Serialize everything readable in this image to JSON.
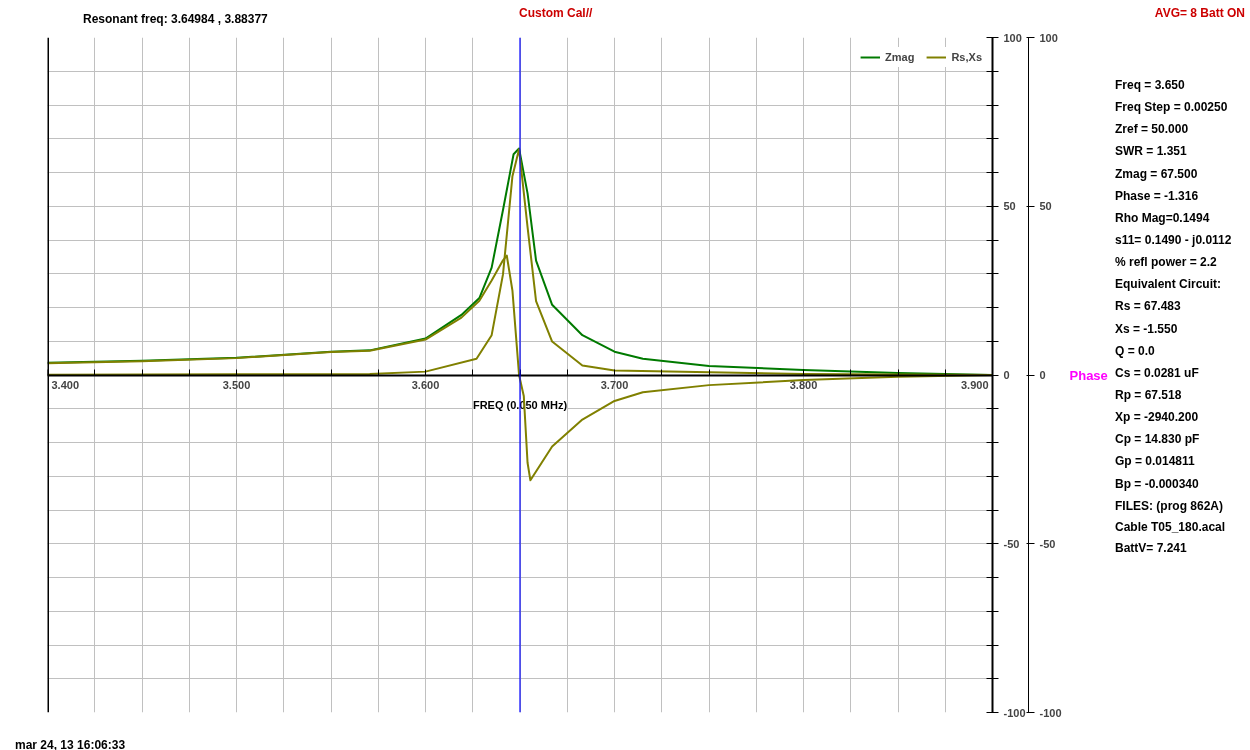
{
  "chart_data": {
    "type": "line",
    "title": "Custom Cal//",
    "subtitle": "Resonant freq:  3.64984 , 3.88377",
    "xlabel": "FREQ (0.050 MHz)",
    "y2label": "Phase",
    "legend": "top right",
    "grid": true,
    "marker": "none",
    "line_style": "solid",
    "xlim": [
      3.4,
      3.9
    ],
    "xticks": [
      {
        "value": 3.4,
        "label": "3.400"
      },
      {
        "value": 3.425,
        "label": null
      },
      {
        "value": 3.45,
        "label": null
      },
      {
        "value": 3.475,
        "label": null
      },
      {
        "value": 3.5,
        "label": "3.500"
      },
      {
        "value": 3.525,
        "label": null
      },
      {
        "value": 3.55,
        "label": null
      },
      {
        "value": 3.575,
        "label": null
      },
      {
        "value": 3.6,
        "label": "3.600"
      },
      {
        "value": 3.625,
        "label": null
      },
      {
        "value": 3.65,
        "label": null
      },
      {
        "value": 3.675,
        "label": null
      },
      {
        "value": 3.7,
        "label": "3.700"
      },
      {
        "value": 3.725,
        "label": null
      },
      {
        "value": 3.75,
        "label": null
      },
      {
        "value": 3.775,
        "label": null
      },
      {
        "value": 3.8,
        "label": "3.800"
      },
      {
        "value": 3.825,
        "label": null
      },
      {
        "value": 3.85,
        "label": null
      },
      {
        "value": 3.875,
        "label": null
      },
      {
        "value": 3.9,
        "label": "3.900"
      }
    ],
    "ylim": [
      -100,
      100
    ],
    "yticks": [
      -100,
      {
        "value": -90,
        "label": null
      },
      {
        "value": -80,
        "label": null
      },
      {
        "value": -70,
        "label": null
      },
      {
        "value": -60,
        "label": null
      },
      -50,
      {
        "value": -40,
        "label": null
      },
      {
        "value": -30,
        "label": null
      },
      {
        "value": -20,
        "label": null
      },
      {
        "value": -10,
        "label": null
      },
      0,
      {
        "value": 10,
        "label": null
      },
      {
        "value": 20,
        "label": null
      },
      {
        "value": 30,
        "label": null
      },
      {
        "value": 40,
        "label": null
      },
      50,
      {
        "value": 60,
        "label": null
      },
      {
        "value": 70,
        "label": null
      },
      {
        "value": 80,
        "label": null
      },
      {
        "value": 90,
        "label": null
      },
      100
    ],
    "y2lim": [
      -100,
      100
    ],
    "y2ticks": [
      -100,
      -50,
      0,
      50,
      100
    ],
    "ref_lines": [
      {
        "axis": "x",
        "value": 3.65,
        "color": "#0000ff"
      }
    ],
    "series": [
      {
        "name": "Zmag",
        "color": "#007a00",
        "x": [
          3.4,
          3.45,
          3.5,
          3.55,
          3.5705,
          3.6,
          3.619,
          3.6285,
          3.635,
          3.641,
          3.6466,
          3.6495,
          3.654,
          3.6585,
          3.667,
          3.683,
          3.7,
          3.715,
          3.75,
          3.8,
          3.85,
          3.9
        ],
        "values": [
          3.6,
          4.2,
          5.1,
          6.9,
          7.3,
          10.8,
          17.8,
          22.8,
          31.8,
          48.9,
          65.4,
          67.1,
          53.8,
          33.9,
          20.8,
          11.8,
          6.9,
          4.8,
          2.7,
          1.5,
          0.6,
          0
        ]
      },
      {
        "name": "Rs,Xs",
        "color": "#808000",
        "x": [
          3.4,
          3.5,
          3.5705,
          3.6,
          3.627,
          3.635,
          3.641,
          3.646,
          3.6495,
          3.654,
          3.6585,
          3.667,
          3.683,
          3.7,
          3.8,
          3.9
        ],
        "values": [
          0.1,
          0.2,
          0.3,
          1,
          4.8,
          11.8,
          29.8,
          58.9,
          66.9,
          43.8,
          21.9,
          9.9,
          2.8,
          1.3,
          0.3,
          0
        ]
      },
      {
        "color": "#808000",
        "x": [
          3.4,
          3.45,
          3.5,
          3.55,
          3.5705,
          3.6,
          3.619,
          3.6285,
          3.635,
          3.641,
          3.643,
          3.646,
          3.6495,
          3.652,
          3.654,
          3.6555,
          3.667,
          3.683,
          3.7,
          3.715,
          3.75,
          3.8,
          3.85,
          3.9
        ],
        "values": [
          3.5,
          4.1,
          5,
          6.8,
          7.2,
          10.5,
          17,
          22,
          28,
          34,
          35.4,
          25,
          0,
          -6.2,
          -26,
          -31.2,
          -21.2,
          -13.2,
          -7.7,
          -5.1,
          -3,
          -1.5,
          -0.5,
          0
        ]
      }
    ],
    "annotations": [
      "AVG=  8 Batt ON",
      "Freq = 3.650",
      "Freq Step = 0.00250",
      "Zref =   50.000",
      "SWR  =   1.351",
      "Zmag =   67.500",
      "Phase =   -1.316",
      "Rho Mag=0.1494",
      "s11= 0.1490 - j0.0112",
      "% refl power =  2.2",
      "Equivalent Circuit:",
      "Rs =   67.483",
      "Xs =   -1.550",
      "Q =  0.0",
      "Cs =   0.0281  uF",
      "Rp =   67.518",
      "Xp = -2940.200",
      "Cp =   14.830  pF",
      "Gp =  0.014811",
      "Bp = -0.000340",
      "FILES:  (prog 862A)",
      "Cable T05_180.acal",
      "BattV=  7.241",
      "mar 24, 13  16:06:33"
    ]
  }
}
